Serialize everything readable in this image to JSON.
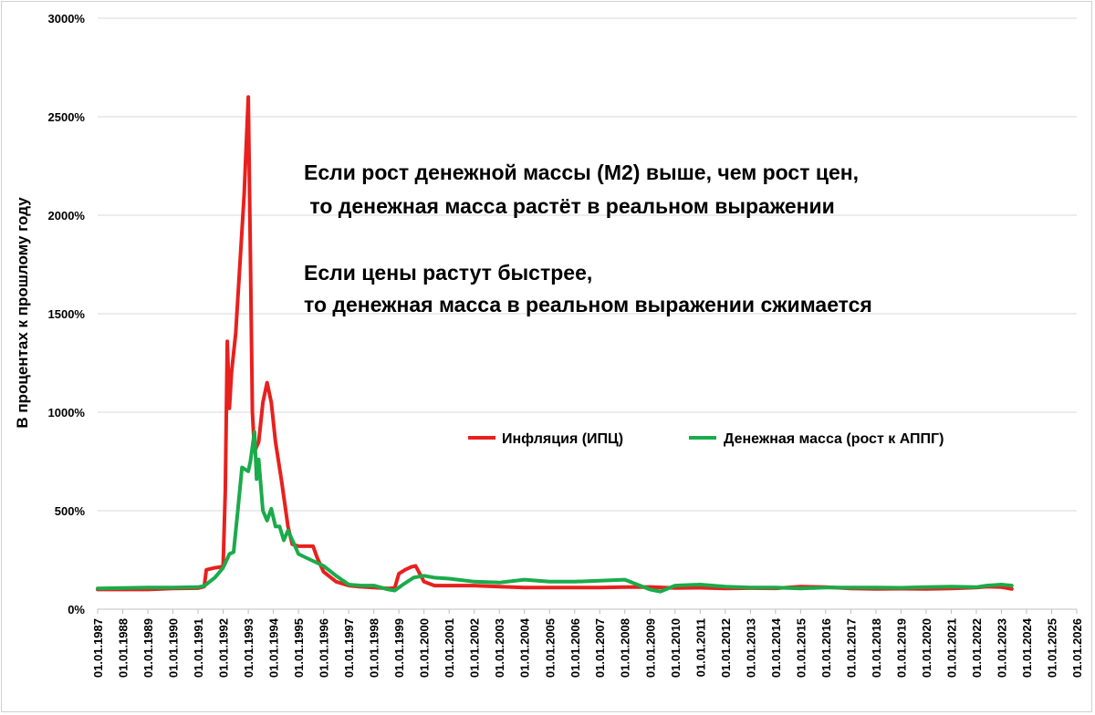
{
  "chart_data": {
    "type": "line",
    "ylabel": "В процентах к прошлому году",
    "xlabel": "",
    "y_unit": "%",
    "ylim": [
      0,
      3000
    ],
    "y_ticks": [
      0,
      500,
      1000,
      1500,
      2000,
      2500,
      3000
    ],
    "y_tick_labels": [
      "0%",
      "500%",
      "1000%",
      "1500%",
      "2000%",
      "2500%",
      "3000%"
    ],
    "x_range": [
      "1987-01-01",
      "2026-01-01"
    ],
    "x_tick_labels": [
      "01.01.1987",
      "01.01.1988",
      "01.01.1989",
      "01.01.1990",
      "01.01.1991",
      "01.01.1992",
      "01.01.1993",
      "01.01.1994",
      "01.01.1995",
      "01.01.1996",
      "01.01.1997",
      "01.01.1998",
      "01.01.1999",
      "01.01.2000",
      "01.01.2001",
      "01.01.2002",
      "01.01.2003",
      "01.01.2004",
      "01.01.2005",
      "01.01.2006",
      "01.01.2007",
      "01.01.2008",
      "01.01.2009",
      "01.01.2010",
      "01.01.2011",
      "01.01.2012",
      "01.01.2013",
      "01.01.2014",
      "01.01.2015",
      "01.01.2016",
      "01.01.2017",
      "01.01.2018",
      "01.01.2019",
      "01.01.2020",
      "01.01.2021",
      "01.01.2022",
      "01.01.2023",
      "01.01.2024",
      "01.01.2025",
      "01.01.2026"
    ],
    "grid": "horizontal",
    "legend_position": "center-right",
    "annotations": [
      "Если рост денежной массы (М2) выше, чем рост цен,",
      " то денежная масса растёт в реальном выражении",
      "Если цены растут быстрее,",
      "то денежная масса в реальном выражении сжимается"
    ],
    "series": [
      {
        "name": "Инфляция (ИПЦ)",
        "color": "#e8201e",
        "points": [
          [
            "1987-01-01",
            100
          ],
          [
            "1988-01-01",
            100
          ],
          [
            "1989-01-01",
            100
          ],
          [
            "1990-01-01",
            105
          ],
          [
            "1991-01-01",
            107
          ],
          [
            "1991-04-01",
            115
          ],
          [
            "1991-05-01",
            200
          ],
          [
            "1991-09-01",
            210
          ],
          [
            "1991-12-01",
            215
          ],
          [
            "1992-01-01",
            220
          ],
          [
            "1992-02-01",
            600
          ],
          [
            "1992-03-01",
            1360
          ],
          [
            "1992-04-01",
            1020
          ],
          [
            "1992-05-01",
            1200
          ],
          [
            "1992-07-01",
            1400
          ],
          [
            "1992-09-01",
            1750
          ],
          [
            "1992-11-01",
            2100
          ],
          [
            "1993-01-01",
            2600
          ],
          [
            "1993-02-01",
            1800
          ],
          [
            "1993-03-01",
            1000
          ],
          [
            "1993-04-01",
            800
          ],
          [
            "1993-06-01",
            850
          ],
          [
            "1993-08-01",
            1050
          ],
          [
            "1993-10-01",
            1150
          ],
          [
            "1993-12-01",
            1050
          ],
          [
            "1994-02-01",
            850
          ],
          [
            "1994-05-01",
            650
          ],
          [
            "1994-08-01",
            420
          ],
          [
            "1994-10-01",
            330
          ],
          [
            "1995-01-01",
            320
          ],
          [
            "1995-05-01",
            320
          ],
          [
            "1995-08-01",
            320
          ],
          [
            "1995-10-01",
            260
          ],
          [
            "1996-01-01",
            190
          ],
          [
            "1996-07-01",
            140
          ],
          [
            "1997-01-01",
            120
          ],
          [
            "1997-06-01",
            115
          ],
          [
            "1998-01-01",
            110
          ],
          [
            "1998-08-01",
            105
          ],
          [
            "1998-11-01",
            108
          ],
          [
            "1999-01-01",
            180
          ],
          [
            "1999-04-01",
            200
          ],
          [
            "1999-07-01",
            215
          ],
          [
            "1999-09-01",
            220
          ],
          [
            "2000-01-01",
            140
          ],
          [
            "2000-06-01",
            120
          ],
          [
            "2001-01-01",
            120
          ],
          [
            "2002-01-01",
            120
          ],
          [
            "2003-01-01",
            115
          ],
          [
            "2004-01-01",
            110
          ],
          [
            "2005-01-01",
            110
          ],
          [
            "2006-01-01",
            110
          ],
          [
            "2007-01-01",
            110
          ],
          [
            "2008-01-01",
            112
          ],
          [
            "2009-01-01",
            113
          ],
          [
            "2010-01-01",
            108
          ],
          [
            "2011-01-01",
            109
          ],
          [
            "2012-01-01",
            105
          ],
          [
            "2013-01-01",
            107
          ],
          [
            "2014-01-01",
            106
          ],
          [
            "2015-01-01",
            115
          ],
          [
            "2016-01-01",
            112
          ],
          [
            "2017-01-01",
            105
          ],
          [
            "2018-01-01",
            103
          ],
          [
            "2019-01-01",
            104
          ],
          [
            "2020-01-01",
            103
          ],
          [
            "2021-01-01",
            105
          ],
          [
            "2022-01-01",
            110
          ],
          [
            "2022-06-01",
            115
          ],
          [
            "2023-01-01",
            112
          ],
          [
            "2023-06-01",
            103
          ]
        ]
      },
      {
        "name": "Денежная масса (рост к АППГ)",
        "color": "#1aab4b",
        "points": [
          [
            "1987-01-01",
            105
          ],
          [
            "1988-01-01",
            108
          ],
          [
            "1989-01-01",
            110
          ],
          [
            "1990-01-01",
            110
          ],
          [
            "1991-01-01",
            112
          ],
          [
            "1991-04-01",
            118
          ],
          [
            "1991-09-01",
            160
          ],
          [
            "1992-01-01",
            210
          ],
          [
            "1992-04-01",
            280
          ],
          [
            "1992-06-01",
            290
          ],
          [
            "1992-08-01",
            500
          ],
          [
            "1992-10-01",
            720
          ],
          [
            "1993-01-01",
            700
          ],
          [
            "1993-02-01",
            750
          ],
          [
            "1993-04-01",
            900
          ],
          [
            "1993-05-01",
            660
          ],
          [
            "1993-06-01",
            760
          ],
          [
            "1993-08-01",
            500
          ],
          [
            "1993-10-01",
            450
          ],
          [
            "1993-12-01",
            510
          ],
          [
            "1994-02-01",
            420
          ],
          [
            "1994-04-01",
            420
          ],
          [
            "1994-06-01",
            350
          ],
          [
            "1994-08-01",
            400
          ],
          [
            "1995-01-01",
            280
          ],
          [
            "1995-07-01",
            250
          ],
          [
            "1996-01-01",
            220
          ],
          [
            "1996-07-01",
            170
          ],
          [
            "1997-01-01",
            125
          ],
          [
            "1997-07-01",
            120
          ],
          [
            "1998-01-01",
            120
          ],
          [
            "1998-08-01",
            100
          ],
          [
            "1998-11-01",
            95
          ],
          [
            "1999-03-01",
            125
          ],
          [
            "1999-08-01",
            160
          ],
          [
            "2000-01-01",
            170
          ],
          [
            "2000-06-01",
            160
          ],
          [
            "2001-01-01",
            155
          ],
          [
            "2002-01-01",
            140
          ],
          [
            "2003-01-01",
            135
          ],
          [
            "2004-01-01",
            150
          ],
          [
            "2005-01-01",
            140
          ],
          [
            "2006-01-01",
            140
          ],
          [
            "2007-01-01",
            145
          ],
          [
            "2008-01-01",
            150
          ],
          [
            "2009-01-01",
            100
          ],
          [
            "2009-06-01",
            90
          ],
          [
            "2010-01-01",
            120
          ],
          [
            "2011-01-01",
            125
          ],
          [
            "2012-01-01",
            115
          ],
          [
            "2013-01-01",
            110
          ],
          [
            "2014-01-01",
            110
          ],
          [
            "2015-01-01",
            105
          ],
          [
            "2016-01-01",
            110
          ],
          [
            "2017-01-01",
            110
          ],
          [
            "2018-01-01",
            110
          ],
          [
            "2019-01-01",
            109
          ],
          [
            "2020-01-01",
            112
          ],
          [
            "2021-01-01",
            115
          ],
          [
            "2022-01-01",
            112
          ],
          [
            "2022-06-01",
            120
          ],
          [
            "2023-01-01",
            125
          ],
          [
            "2023-06-01",
            120
          ]
        ]
      }
    ]
  }
}
